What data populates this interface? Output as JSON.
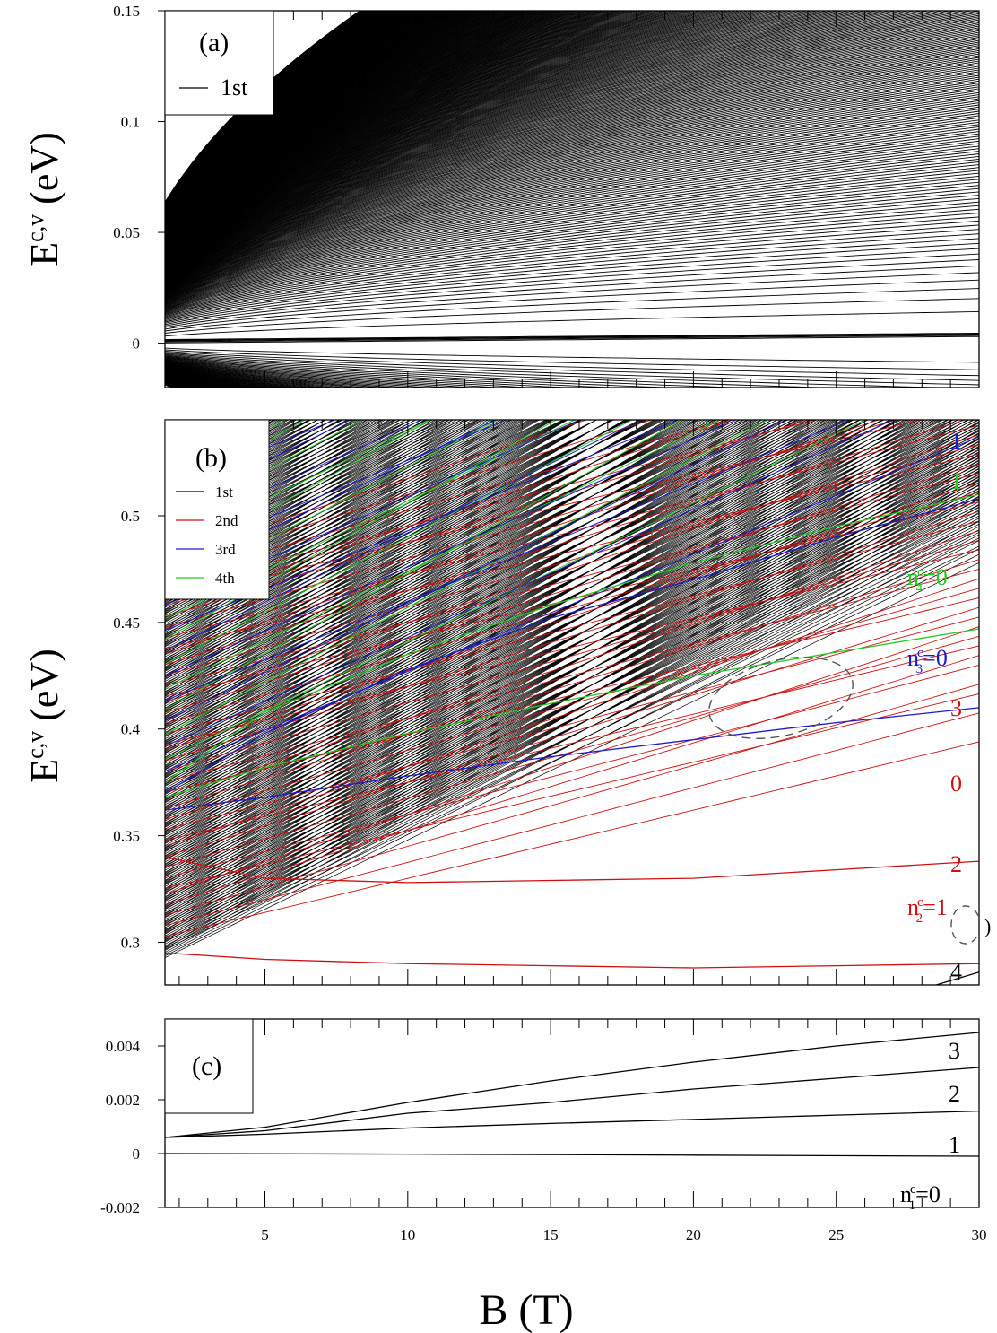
{
  "chart_data": [
    {
      "type": "line",
      "panel": "(a)",
      "ylabel": "E",
      "ylabel_sup": "c,v",
      "ylabel_unit": "(eV)",
      "xlim": [
        1.5,
        30
      ],
      "ylim": [
        -0.02,
        0.15
      ],
      "yticks": [
        "0.15",
        "0.1",
        "0.05",
        "0"
      ],
      "ytick_values": [
        0.15,
        0.1,
        0.05,
        0
      ],
      "legend": [
        {
          "label": "1st",
          "color": "#000000"
        }
      ],
      "legend_placement": "top-left",
      "series": [
        {
          "group": "1st",
          "family": "conduction fan",
          "formula": "E = 0.0026*sqrt(n*B)",
          "n_range": [
            1,
            400
          ],
          "color": "#000000"
        },
        {
          "group": "1st",
          "family": "near-zero levels",
          "values": [
            0.0,
            0.0005,
            0.0009,
            0.0012,
            0.0015
          ],
          "color": "#000000"
        },
        {
          "group": "1st",
          "family": "valence fan",
          "formula": "E = -0.0015*sqrt(n*B)",
          "n_range": [
            1,
            100
          ],
          "color": "#000000"
        }
      ]
    },
    {
      "type": "line",
      "panel": "(b)",
      "ylabel": "E",
      "ylabel_sup": "c,v",
      "ylabel_unit": "(eV)",
      "xlim": [
        1.5,
        30
      ],
      "ylim": [
        0.28,
        0.545
      ],
      "yticks": [
        "0.5",
        "0.45",
        "0.4",
        "0.35",
        "0.3"
      ],
      "ytick_values": [
        0.5,
        0.45,
        0.4,
        0.35,
        0.3
      ],
      "legend": [
        {
          "label": "1st",
          "color": "#000000"
        },
        {
          "label": "2nd",
          "color": "#d01010"
        },
        {
          "label": "3rd",
          "color": "#1a1acc"
        },
        {
          "label": "4th",
          "color": "#22cc22"
        }
      ],
      "legend_placement": "top-left",
      "level_labels": [
        {
          "text": "1",
          "color": "#1a1acc"
        },
        {
          "text": "1",
          "color": "#22cc22"
        },
        {
          "text": "n",
          "sup": "c",
          "sub": "4",
          "suffix": "=0",
          "color": "#22cc22"
        },
        {
          "text": "n",
          "sup": "c",
          "sub": "3",
          "suffix": "=0",
          "color": "#1a1acc"
        },
        {
          "text": "3",
          "color": "#d01010"
        },
        {
          "text": "0",
          "color": "#d01010"
        },
        {
          "text": "2",
          "color": "#d01010"
        },
        {
          "text": "n",
          "sup": "c",
          "sub": "2",
          "suffix": "=1",
          "color": "#d01010"
        },
        {
          "text": "4",
          "color": "#000000"
        }
      ],
      "series": [
        {
          "name": "3rd n=0",
          "color": "#1a1acc",
          "x": [
            1.5,
            5,
            10,
            15,
            20,
            25,
            30
          ],
          "y": [
            0.362,
            0.368,
            0.378,
            0.387,
            0.395,
            0.403,
            0.41
          ]
        },
        {
          "name": "4th n=0",
          "color": "#22cc22",
          "x": [
            1.5,
            5,
            10,
            15,
            20,
            25,
            30
          ],
          "y": [
            0.368,
            0.382,
            0.398,
            0.412,
            0.425,
            0.436,
            0.447
          ]
        },
        {
          "name": "3rd n=1",
          "color": "#1a1acc",
          "x": [
            1.5,
            5,
            10,
            15,
            20,
            25,
            30
          ],
          "y": [
            0.37,
            0.398,
            0.428,
            0.452,
            0.47,
            0.49,
            0.508
          ]
        },
        {
          "name": "4th n=1",
          "color": "#22cc22",
          "x": [
            1.5,
            5,
            10,
            15,
            20,
            25,
            30
          ],
          "y": [
            0.375,
            0.408,
            0.435,
            0.458,
            0.478,
            0.495,
            0.51
          ]
        },
        {
          "name": "2nd n=1",
          "color": "#d01010",
          "x": [
            1.5,
            5,
            10,
            15,
            20,
            25,
            30
          ],
          "y": [
            0.295,
            0.292,
            0.29,
            0.289,
            0.288,
            0.289,
            0.29
          ]
        },
        {
          "name": "2nd n=2",
          "color": "#d01010",
          "x": [
            1.5,
            5,
            10,
            15,
            20,
            25,
            30
          ],
          "y": [
            0.34,
            0.33,
            0.328,
            0.329,
            0.33,
            0.334,
            0.338
          ]
        },
        {
          "name": "1st n=4",
          "color": "#000000",
          "x": [
            28.5,
            30
          ],
          "y": [
            0.28,
            0.286
          ]
        }
      ]
    },
    {
      "type": "line",
      "panel": "(c)",
      "xlabel": "B (T)",
      "xlim": [
        1.5,
        30
      ],
      "xticks": [
        "5",
        "10",
        "15",
        "20",
        "25",
        "30"
      ],
      "xtick_values": [
        5,
        10,
        15,
        20,
        25,
        30
      ],
      "ylim": [
        -0.002,
        0.005
      ],
      "yticks": [
        "0.004",
        "0.002",
        "0",
        "-0.002"
      ],
      "ytick_values": [
        0.004,
        0.002,
        0,
        -0.002
      ],
      "level_labels": [
        {
          "text": "3"
        },
        {
          "text": "2"
        },
        {
          "text": "1"
        },
        {
          "text": "n",
          "sup": "c",
          "sub": "1",
          "suffix": "=0"
        }
      ],
      "series": [
        {
          "name": "n=0",
          "color": "#000000",
          "x": [
            1.5,
            10,
            20,
            30
          ],
          "y": [
            0.0,
            -2e-05,
            -6e-05,
            -0.0001
          ]
        },
        {
          "name": "n=1",
          "color": "#000000",
          "x": [
            1.5,
            5,
            10,
            15,
            20,
            25,
            30
          ],
          "y": [
            0.0006,
            0.00072,
            0.00095,
            0.00112,
            0.00127,
            0.00143,
            0.00158
          ]
        },
        {
          "name": "n=2",
          "color": "#000000",
          "x": [
            1.5,
            5,
            10,
            15,
            20,
            25,
            30
          ],
          "y": [
            0.0006,
            0.00085,
            0.0015,
            0.0019,
            0.0024,
            0.0028,
            0.0032
          ]
        },
        {
          "name": "n=3",
          "color": "#000000",
          "x": [
            1.5,
            5,
            10,
            15,
            20,
            25,
            30
          ],
          "y": [
            0.0006,
            0.00098,
            0.0019,
            0.0027,
            0.0034,
            0.004,
            0.0045
          ]
        }
      ]
    }
  ]
}
